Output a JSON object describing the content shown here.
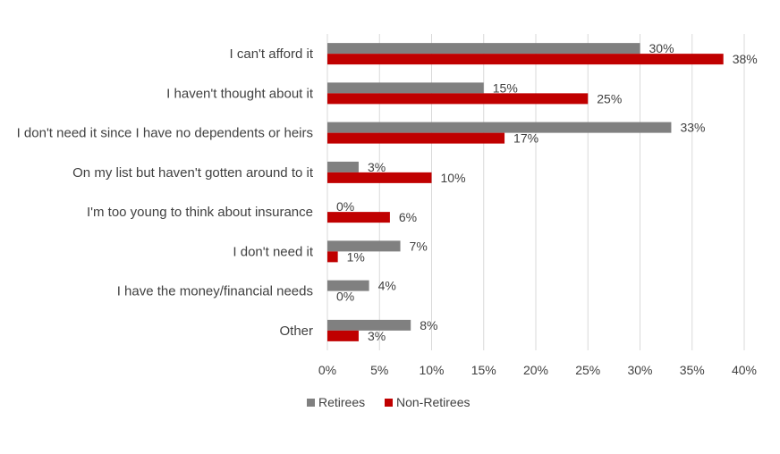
{
  "chart_data": {
    "type": "bar",
    "orientation": "horizontal",
    "categories": [
      "I can't afford it",
      "I haven't thought about it",
      "I don't need it since I have no dependents or heirs",
      "On my list but haven't gotten around to it",
      "I'm too young to think about insurance",
      "I don't need it",
      "I have the money/financial needs",
      "Other"
    ],
    "series": [
      {
        "name": "Retirees",
        "color": "#808080",
        "values": [
          30,
          15,
          33,
          3,
          0,
          7,
          4,
          8
        ]
      },
      {
        "name": "Non-Retirees",
        "color": "#c00000",
        "values": [
          38,
          25,
          17,
          10,
          6,
          1,
          0,
          3
        ]
      }
    ],
    "xlim": [
      0,
      40
    ],
    "x_ticks": [
      0,
      5,
      10,
      15,
      20,
      25,
      30,
      35,
      40
    ],
    "value_suffix": "%",
    "grid": "vertical",
    "legend_position": "bottom",
    "title": "",
    "xlabel": "",
    "ylabel": ""
  }
}
